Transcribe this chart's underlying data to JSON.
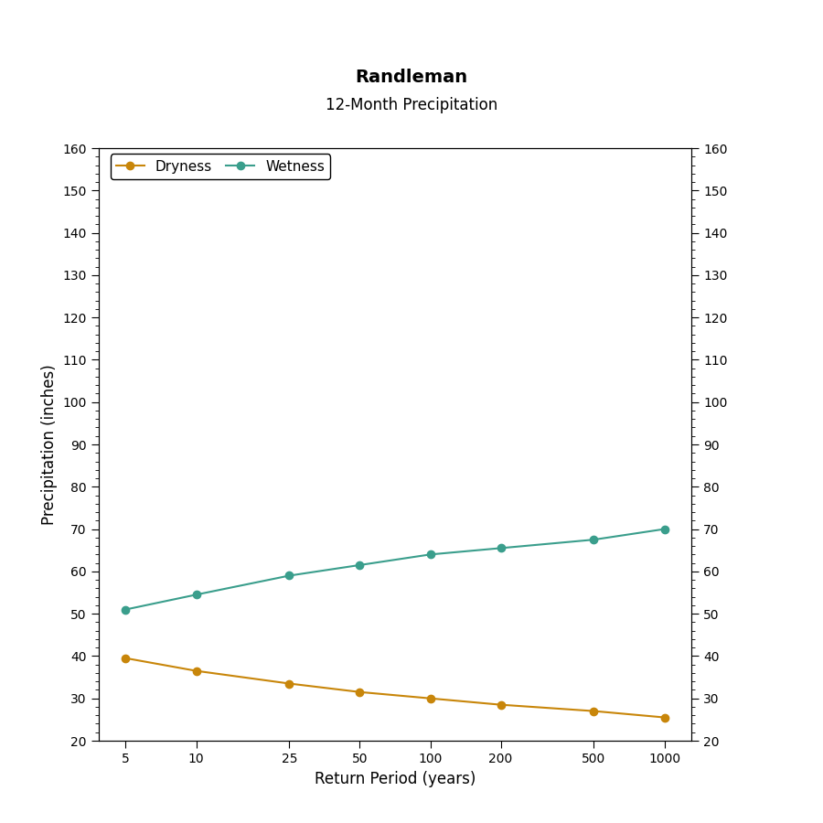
{
  "title": "Randleman",
  "subtitle": "12-Month Precipitation",
  "xlabel": "Return Period (years)",
  "ylabel": "Precipitation (inches)",
  "x_values": [
    5,
    10,
    25,
    50,
    100,
    200,
    500,
    1000
  ],
  "dryness_values": [
    39.5,
    36.5,
    33.5,
    31.5,
    30.0,
    28.5,
    27.0,
    25.5
  ],
  "wetness_values": [
    51.0,
    54.5,
    59.0,
    61.5,
    64.0,
    65.5,
    67.5,
    70.0
  ],
  "dryness_color": "#C8860A",
  "wetness_color": "#3A9E8C",
  "ylim": [
    20,
    160
  ],
  "yticks": [
    20,
    30,
    40,
    50,
    60,
    70,
    80,
    90,
    100,
    110,
    120,
    130,
    140,
    150,
    160
  ],
  "background_color": "#FFFFFF",
  "plot_bg_color": "#FFFFFF",
  "legend_labels": [
    "Dryness",
    "Wetness"
  ],
  "title_fontsize": 14,
  "subtitle_fontsize": 12,
  "axis_label_fontsize": 12,
  "tick_fontsize": 10,
  "legend_fontsize": 11,
  "line_width": 1.5,
  "marker_size": 6
}
